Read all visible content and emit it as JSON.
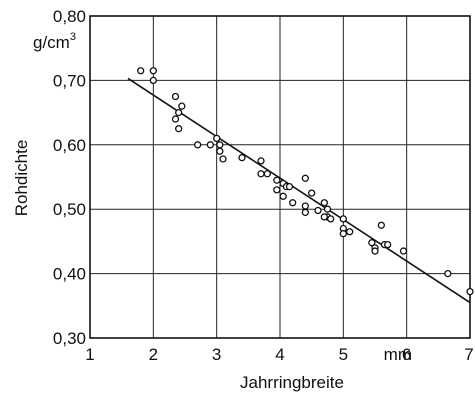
{
  "chart_data": {
    "type": "scatter",
    "title": "",
    "xlabel": "Jahrringbreite",
    "ylabel": "Rohdichte",
    "x_unit": "mm",
    "y_unit": "g/cm3",
    "y_unit_base": "g/cm",
    "y_unit_exp": "3",
    "xlim": [
      1,
      7
    ],
    "ylim": [
      0.3,
      0.8
    ],
    "x_ticks": [
      1,
      2,
      3,
      4,
      5,
      6,
      7
    ],
    "x_tick_labels": [
      "1",
      "2",
      "3",
      "4",
      "5",
      "6",
      "7"
    ],
    "y_ticks": [
      0.3,
      0.4,
      0.5,
      0.6,
      0.7,
      0.8
    ],
    "y_tick_labels": [
      "0,30",
      "0,40",
      "0,50",
      "0,60",
      "0,70",
      "0,80"
    ],
    "grid": true,
    "legend": "none",
    "points": [
      [
        1.8,
        0.715
      ],
      [
        2.0,
        0.715
      ],
      [
        2.0,
        0.7
      ],
      [
        2.35,
        0.675
      ],
      [
        2.45,
        0.66
      ],
      [
        2.4,
        0.65
      ],
      [
        2.35,
        0.64
      ],
      [
        2.4,
        0.625
      ],
      [
        2.7,
        0.6
      ],
      [
        2.9,
        0.6
      ],
      [
        3.0,
        0.61
      ],
      [
        3.05,
        0.6
      ],
      [
        3.05,
        0.59
      ],
      [
        3.1,
        0.578
      ],
      [
        3.4,
        0.58
      ],
      [
        3.7,
        0.575
      ],
      [
        3.7,
        0.555
      ],
      [
        3.8,
        0.555
      ],
      [
        3.95,
        0.545
      ],
      [
        4.05,
        0.54
      ],
      [
        4.1,
        0.535
      ],
      [
        4.15,
        0.535
      ],
      [
        3.95,
        0.53
      ],
      [
        4.05,
        0.52
      ],
      [
        4.2,
        0.51
      ],
      [
        4.4,
        0.548
      ],
      [
        4.5,
        0.525
      ],
      [
        4.4,
        0.505
      ],
      [
        4.4,
        0.495
      ],
      [
        4.6,
        0.498
      ],
      [
        4.7,
        0.51
      ],
      [
        4.75,
        0.5
      ],
      [
        4.75,
        0.488
      ],
      [
        4.8,
        0.485
      ],
      [
        4.7,
        0.488
      ],
      [
        5.0,
        0.485
      ],
      [
        5.0,
        0.47
      ],
      [
        5.1,
        0.465
      ],
      [
        5.0,
        0.462
      ],
      [
        5.45,
        0.448
      ],
      [
        5.5,
        0.44
      ],
      [
        5.5,
        0.435
      ],
      [
        5.6,
        0.475
      ],
      [
        5.65,
        0.445
      ],
      [
        5.7,
        0.445
      ],
      [
        5.95,
        0.435
      ],
      [
        6.65,
        0.4
      ],
      [
        7.0,
        0.372
      ]
    ],
    "trendline": {
      "x": [
        1.6,
        7.0
      ],
      "y": [
        0.703,
        0.355
      ]
    }
  }
}
